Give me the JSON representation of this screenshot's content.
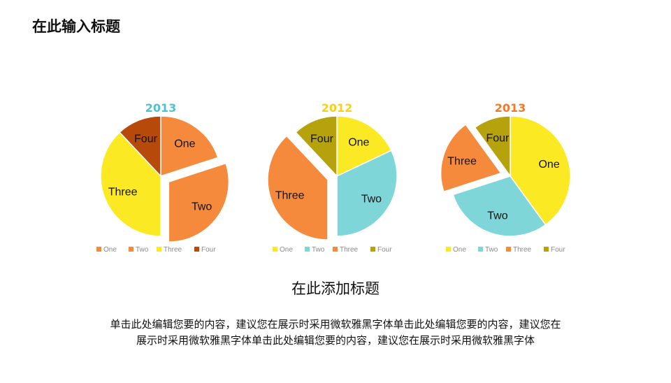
{
  "page": {
    "title": "在此输入标题",
    "subtitle": "在此添加标题",
    "body_line1": "单击此处编辑您要的内容，建议您在展示时采用微软雅黑字体单击此处编辑您要的内容，建议您在",
    "body_line2": "展示时采用微软雅黑字体单击此处编辑您要的内容，建议您在展示时采用微软雅黑字体"
  },
  "chart_data": [
    {
      "type": "pie",
      "title": "2013",
      "title_color": "#4fc3c9",
      "categories": [
        "One",
        "Two",
        "Three",
        "Four"
      ],
      "values": [
        20,
        30,
        38,
        12
      ],
      "colors": [
        "#f58a3c",
        "#f58a3c",
        "#fbe924",
        "#b7490a"
      ],
      "exploded": "Two",
      "legend": "bottom"
    },
    {
      "type": "pie",
      "title": "2012",
      "title_color": "#f2d21b",
      "categories": [
        "One",
        "Two",
        "Three",
        "Four"
      ],
      "values": [
        18,
        32,
        38,
        12
      ],
      "colors": [
        "#fbe924",
        "#7fd6d9",
        "#f58a3c",
        "#b5a20d"
      ],
      "exploded": "Three",
      "legend": "bottom"
    },
    {
      "type": "pie",
      "title": "2013",
      "title_color": "#f07a2c",
      "categories": [
        "One",
        "Two",
        "Three",
        "Four"
      ],
      "values": [
        40,
        30,
        20,
        10
      ],
      "colors": [
        "#fbe924",
        "#7fd6d9",
        "#f58a3c",
        "#b5a20d"
      ],
      "exploded": "Three",
      "legend": "bottom"
    }
  ]
}
